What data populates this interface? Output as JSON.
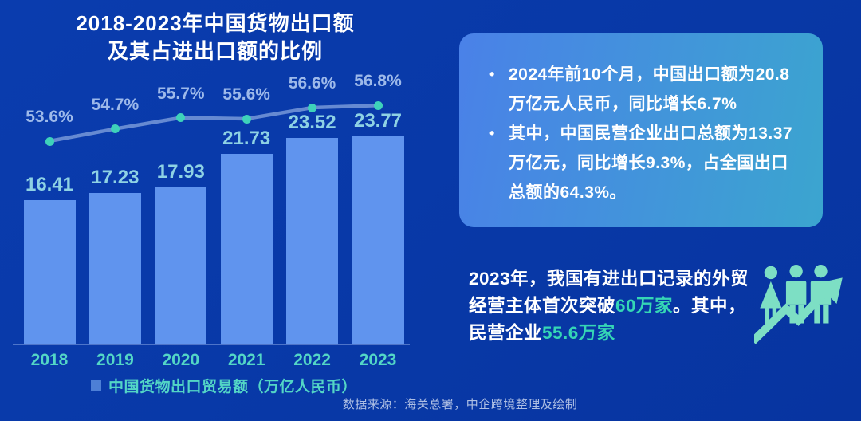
{
  "title": {
    "line1": "2018-2023年中国货物出口额",
    "line2": "及其占进出口额的比例"
  },
  "chart_data": {
    "type": "bar",
    "title": "2018-2023年中国货物出口额及其占进出口额的比例",
    "categories": [
      "2018",
      "2019",
      "2020",
      "2021",
      "2022",
      "2023"
    ],
    "series": [
      {
        "name": "中国货物出口贸易额（万亿人民币）",
        "type": "bar",
        "values": [
          16.41,
          17.23,
          17.93,
          21.73,
          23.52,
          23.77
        ]
      },
      {
        "name": "占进出口额的比例",
        "type": "line",
        "unit": "%",
        "values": [
          53.6,
          54.7,
          55.7,
          55.6,
          56.6,
          56.8
        ]
      }
    ],
    "xlabel": "",
    "ylabel": "万亿人民币",
    "grid": false,
    "legend_position": "bottom",
    "legend": [
      "中国货物出口贸易额（万亿人民币）"
    ]
  },
  "legend": {
    "label": "中国货物出口贸易额（万亿人民币）"
  },
  "source": "数据来源：海关总署，中企跨境整理及绘制",
  "info_box": {
    "bullets": [
      "2024年前10个月，中国出口额为20.8万亿元人民币，同比增长6.7%",
      "其中，中国民营企业出口总额为13.37万亿元，同比增长9.3%，占全国出口总额的64.3%。"
    ]
  },
  "highlight_block": {
    "lines": [
      [
        {
          "text": "2023年，我国有进出口记录的外贸",
          "highlight": false
        }
      ],
      [
        {
          "text": "经营主体首次突破",
          "highlight": false
        },
        {
          "text": "60万家",
          "highlight": true
        },
        {
          "text": "。其中，",
          "highlight": false
        }
      ],
      [
        {
          "text": "民营企业",
          "highlight": false
        },
        {
          "text": "55.6万家",
          "highlight": true
        }
      ]
    ]
  },
  "icons": {
    "growth_icon": "people-group-with-rising-arrow"
  },
  "colors": {
    "background": "#0839a7",
    "bar": "#6094ee",
    "bar_value_label": "#8ed2e4",
    "pct_label": "#9db9ea",
    "line": "#7e9fdc",
    "dot": "#3ed2ba",
    "year_label": "#53d6c6",
    "legend_marker": "#4d7fd6",
    "legend_text": "#53d6c6",
    "source_text": "#aebfe4",
    "info_box_gradient_start": "#4a81e8",
    "info_box_gradient_end": "#3ba5cf",
    "info_box_text": "#ffffff",
    "highlight_teal": "#35d6b5",
    "icon": "#7ddfc4",
    "title_text": "#ffffff"
  }
}
